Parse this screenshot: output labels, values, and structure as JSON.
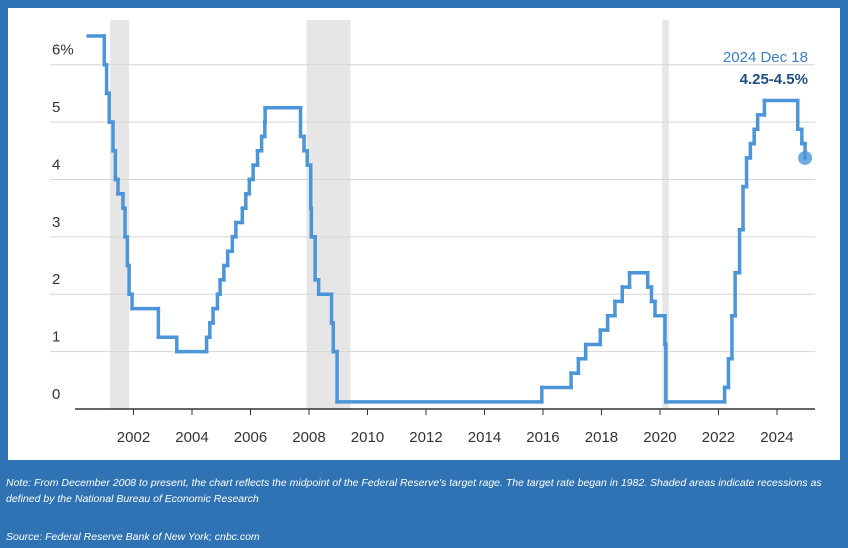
{
  "chart_data": {
    "type": "step",
    "color": "#4b95d8",
    "recession_color": "#e6e6e6",
    "recessions": [
      [
        2001.2,
        2001.85
      ],
      [
        2007.92,
        2009.42
      ],
      [
        2020.08,
        2020.3
      ]
    ],
    "x": [
      2000.45,
      2001.0,
      2001.08,
      2001.17,
      2001.3,
      2001.38,
      2001.47,
      2001.64,
      2001.71,
      2001.79,
      2001.85,
      2001.95,
      2002.85,
      2003.48,
      2004.5,
      2004.61,
      2004.72,
      2004.87,
      2004.96,
      2005.09,
      2005.22,
      2005.38,
      2005.5,
      2005.72,
      2005.84,
      2005.96,
      2006.09,
      2006.24,
      2006.38,
      2006.49,
      2006.5,
      2007.71,
      2007.83,
      2007.94,
      2008.06,
      2008.08,
      2008.21,
      2008.33,
      2008.77,
      2008.83,
      2008.96,
      2015.96,
      2016.96,
      2017.21,
      2017.46,
      2017.96,
      2018.21,
      2018.46,
      2018.71,
      2018.96,
      2019.58,
      2019.71,
      2019.83,
      2020.17,
      2020.2,
      2022.21,
      2022.34,
      2022.46,
      2022.57,
      2022.72,
      2022.84,
      2022.96,
      2023.09,
      2023.22,
      2023.34,
      2023.57,
      2024.71,
      2024.85,
      2024.96
    ],
    "values": [
      6.5,
      6.0,
      5.5,
      5.0,
      4.5,
      4.0,
      3.75,
      3.5,
      3.0,
      2.5,
      2.0,
      1.75,
      1.25,
      1.0,
      1.25,
      1.5,
      1.75,
      2.0,
      2.25,
      2.5,
      2.75,
      3.0,
      3.25,
      3.5,
      3.75,
      4.0,
      4.25,
      4.5,
      4.75,
      5.0,
      5.25,
      4.75,
      4.5,
      4.25,
      3.5,
      3.0,
      2.25,
      2.0,
      1.5,
      1.0,
      0.125,
      0.375,
      0.625,
      0.875,
      1.125,
      1.375,
      1.625,
      1.875,
      2.125,
      2.375,
      2.125,
      1.875,
      1.625,
      1.125,
      0.125,
      0.375,
      0.875,
      1.625,
      2.375,
      3.125,
      3.875,
      4.375,
      4.625,
      4.875,
      5.125,
      5.375,
      4.875,
      4.625,
      4.375
    ],
    "xlim": [
      2000,
      2025.3
    ],
    "ylim": [
      0,
      6.5
    ],
    "xticks": [
      2002,
      2004,
      2006,
      2008,
      2010,
      2012,
      2014,
      2016,
      2018,
      2020,
      2022,
      2024
    ],
    "yticks": [
      0,
      1,
      2,
      3,
      4,
      5,
      {
        "value": 6,
        "label": "6%"
      }
    ],
    "grid": true,
    "annotation_date": "2024 Dec 18",
    "annotation_value": "4.25-4.5%",
    "note": "Note: From December 2008 to present, the chart reflects the midpoint of the Federal Reserve's target rage. The target rate began in 1982. Shaded areas indicate recessions as defined by the National Bureau of Economic Research",
    "source": "Source: Federal Reserve Bank of New York; cnbc.com"
  }
}
